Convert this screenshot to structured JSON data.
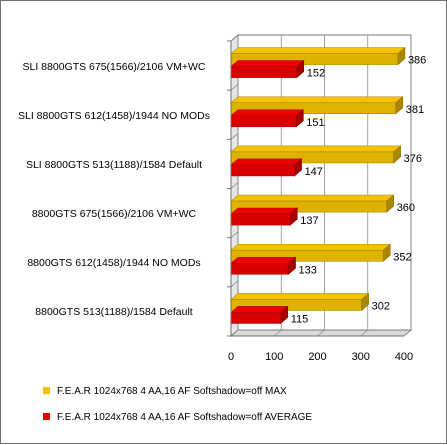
{
  "chart_data": {
    "type": "bar",
    "orientation": "horizontal",
    "style": "3d-clustered",
    "categories": [
      "SLI 8800GTS 675(1566)/2106 VM+WC",
      "SLI 8800GTS 612(1458)/1944 NO MODs",
      "SLI 8800GTS 513(1188)/1584 Default",
      "8800GTS 675(1566)/2106 VM+WC",
      "8800GTS 612(1458)/1944 NO MODs",
      "8800GTS 513(1188)/1584 Default"
    ],
    "series": [
      {
        "name": "F.E.A.R 1024x768 4 AA,16 AF Softshadow=off MAX",
        "color": "#f2c200",
        "values": [
          386,
          381,
          376,
          360,
          352,
          302
        ]
      },
      {
        "name": "F.E.A.R 1024x768 4 AA,16 AF Softshadow=off AVERAGE",
        "color": "#ee0000",
        "values": [
          152,
          151,
          147,
          137,
          133,
          115
        ]
      }
    ],
    "xlim": [
      0,
      400
    ],
    "xticks": [
      0,
      100,
      200,
      300,
      400
    ],
    "grid": true,
    "legend_position": "bottom",
    "data_labels": true
  }
}
